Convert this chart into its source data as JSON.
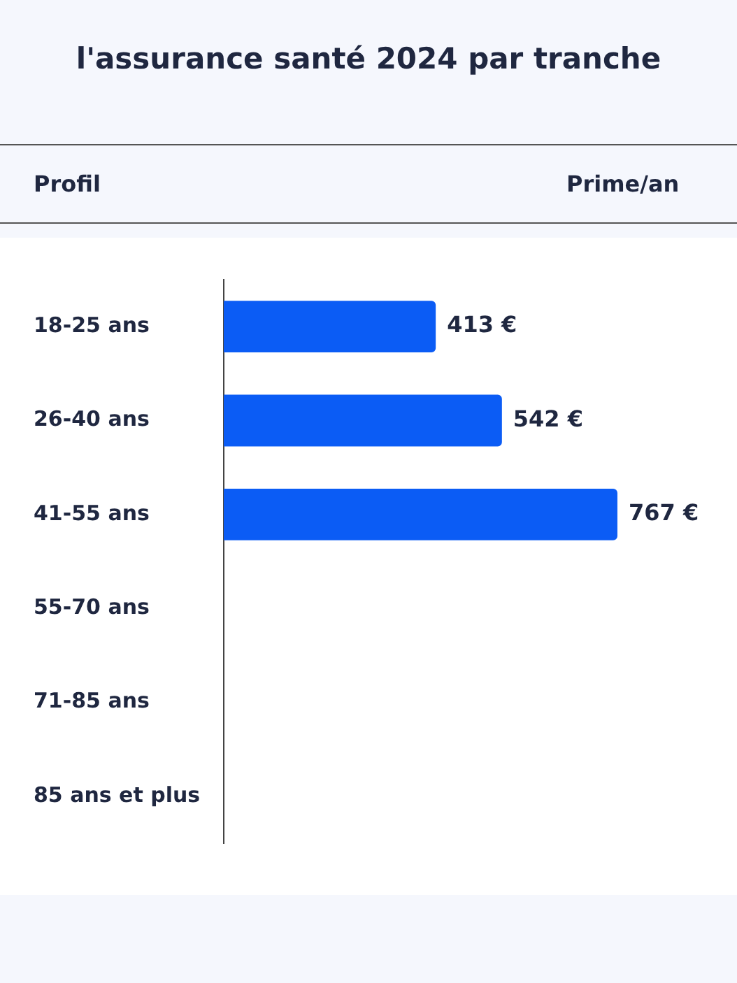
{
  "chart_data": {
    "type": "bar",
    "orientation": "horizontal",
    "title": "l'assurance santé 2024 par tranche",
    "ylabel": "Profil",
    "xlabel": "Prime/an",
    "categories": [
      "18-25 ans",
      "26-40 ans",
      "41-55 ans",
      "55-70 ans",
      "71-85 ans",
      "85 ans et plus"
    ],
    "values": [
      413,
      542,
      767,
      null,
      null,
      null
    ],
    "value_labels": [
      "413 €",
      "542 €",
      "767 €",
      null,
      null,
      null
    ],
    "color": "#0b5cf5",
    "xlim": [
      0,
      1000
    ],
    "legend": false,
    "tick_labels": "y"
  }
}
